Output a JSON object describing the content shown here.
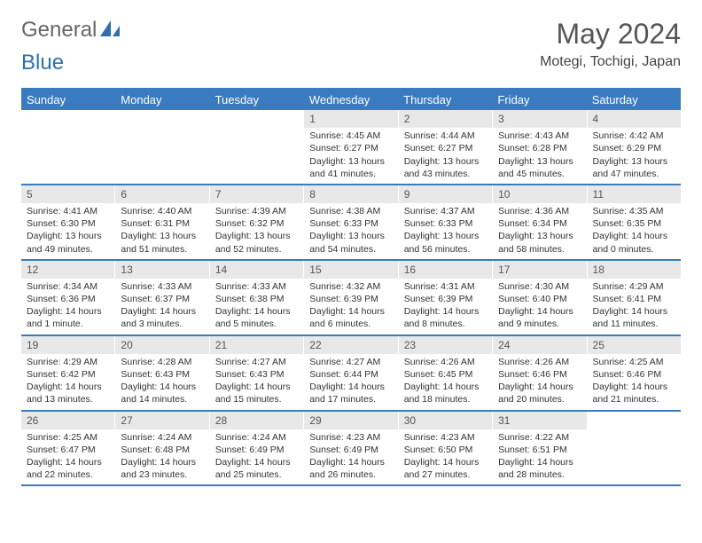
{
  "brand": {
    "text1": "General",
    "text2": "Blue"
  },
  "title": "May 2024",
  "location": "Motegi, Tochigi, Japan",
  "colors": {
    "header_bg": "#3a7bbf",
    "header_text": "#ffffff",
    "date_bg": "#e8e8e8",
    "border": "#3a7bbf",
    "page_bg": "#ffffff",
    "logo_gray": "#666666",
    "logo_blue": "#2f6fb0"
  },
  "dayNames": [
    "Sunday",
    "Monday",
    "Tuesday",
    "Wednesday",
    "Thursday",
    "Friday",
    "Saturday"
  ],
  "weeks": [
    [
      {
        "empty": true
      },
      {
        "empty": true
      },
      {
        "empty": true
      },
      {
        "date": "1",
        "sunrise": "Sunrise: 4:45 AM",
        "sunset": "Sunset: 6:27 PM",
        "daylight": "Daylight: 13 hours and 41 minutes."
      },
      {
        "date": "2",
        "sunrise": "Sunrise: 4:44 AM",
        "sunset": "Sunset: 6:27 PM",
        "daylight": "Daylight: 13 hours and 43 minutes."
      },
      {
        "date": "3",
        "sunrise": "Sunrise: 4:43 AM",
        "sunset": "Sunset: 6:28 PM",
        "daylight": "Daylight: 13 hours and 45 minutes."
      },
      {
        "date": "4",
        "sunrise": "Sunrise: 4:42 AM",
        "sunset": "Sunset: 6:29 PM",
        "daylight": "Daylight: 13 hours and 47 minutes."
      }
    ],
    [
      {
        "date": "5",
        "sunrise": "Sunrise: 4:41 AM",
        "sunset": "Sunset: 6:30 PM",
        "daylight": "Daylight: 13 hours and 49 minutes."
      },
      {
        "date": "6",
        "sunrise": "Sunrise: 4:40 AM",
        "sunset": "Sunset: 6:31 PM",
        "daylight": "Daylight: 13 hours and 51 minutes."
      },
      {
        "date": "7",
        "sunrise": "Sunrise: 4:39 AM",
        "sunset": "Sunset: 6:32 PM",
        "daylight": "Daylight: 13 hours and 52 minutes."
      },
      {
        "date": "8",
        "sunrise": "Sunrise: 4:38 AM",
        "sunset": "Sunset: 6:33 PM",
        "daylight": "Daylight: 13 hours and 54 minutes."
      },
      {
        "date": "9",
        "sunrise": "Sunrise: 4:37 AM",
        "sunset": "Sunset: 6:33 PM",
        "daylight": "Daylight: 13 hours and 56 minutes."
      },
      {
        "date": "10",
        "sunrise": "Sunrise: 4:36 AM",
        "sunset": "Sunset: 6:34 PM",
        "daylight": "Daylight: 13 hours and 58 minutes."
      },
      {
        "date": "11",
        "sunrise": "Sunrise: 4:35 AM",
        "sunset": "Sunset: 6:35 PM",
        "daylight": "Daylight: 14 hours and 0 minutes."
      }
    ],
    [
      {
        "date": "12",
        "sunrise": "Sunrise: 4:34 AM",
        "sunset": "Sunset: 6:36 PM",
        "daylight": "Daylight: 14 hours and 1 minute."
      },
      {
        "date": "13",
        "sunrise": "Sunrise: 4:33 AM",
        "sunset": "Sunset: 6:37 PM",
        "daylight": "Daylight: 14 hours and 3 minutes."
      },
      {
        "date": "14",
        "sunrise": "Sunrise: 4:33 AM",
        "sunset": "Sunset: 6:38 PM",
        "daylight": "Daylight: 14 hours and 5 minutes."
      },
      {
        "date": "15",
        "sunrise": "Sunrise: 4:32 AM",
        "sunset": "Sunset: 6:39 PM",
        "daylight": "Daylight: 14 hours and 6 minutes."
      },
      {
        "date": "16",
        "sunrise": "Sunrise: 4:31 AM",
        "sunset": "Sunset: 6:39 PM",
        "daylight": "Daylight: 14 hours and 8 minutes."
      },
      {
        "date": "17",
        "sunrise": "Sunrise: 4:30 AM",
        "sunset": "Sunset: 6:40 PM",
        "daylight": "Daylight: 14 hours and 9 minutes."
      },
      {
        "date": "18",
        "sunrise": "Sunrise: 4:29 AM",
        "sunset": "Sunset: 6:41 PM",
        "daylight": "Daylight: 14 hours and 11 minutes."
      }
    ],
    [
      {
        "date": "19",
        "sunrise": "Sunrise: 4:29 AM",
        "sunset": "Sunset: 6:42 PM",
        "daylight": "Daylight: 14 hours and 13 minutes."
      },
      {
        "date": "20",
        "sunrise": "Sunrise: 4:28 AM",
        "sunset": "Sunset: 6:43 PM",
        "daylight": "Daylight: 14 hours and 14 minutes."
      },
      {
        "date": "21",
        "sunrise": "Sunrise: 4:27 AM",
        "sunset": "Sunset: 6:43 PM",
        "daylight": "Daylight: 14 hours and 15 minutes."
      },
      {
        "date": "22",
        "sunrise": "Sunrise: 4:27 AM",
        "sunset": "Sunset: 6:44 PM",
        "daylight": "Daylight: 14 hours and 17 minutes."
      },
      {
        "date": "23",
        "sunrise": "Sunrise: 4:26 AM",
        "sunset": "Sunset: 6:45 PM",
        "daylight": "Daylight: 14 hours and 18 minutes."
      },
      {
        "date": "24",
        "sunrise": "Sunrise: 4:26 AM",
        "sunset": "Sunset: 6:46 PM",
        "daylight": "Daylight: 14 hours and 20 minutes."
      },
      {
        "date": "25",
        "sunrise": "Sunrise: 4:25 AM",
        "sunset": "Sunset: 6:46 PM",
        "daylight": "Daylight: 14 hours and 21 minutes."
      }
    ],
    [
      {
        "date": "26",
        "sunrise": "Sunrise: 4:25 AM",
        "sunset": "Sunset: 6:47 PM",
        "daylight": "Daylight: 14 hours and 22 minutes."
      },
      {
        "date": "27",
        "sunrise": "Sunrise: 4:24 AM",
        "sunset": "Sunset: 6:48 PM",
        "daylight": "Daylight: 14 hours and 23 minutes."
      },
      {
        "date": "28",
        "sunrise": "Sunrise: 4:24 AM",
        "sunset": "Sunset: 6:49 PM",
        "daylight": "Daylight: 14 hours and 25 minutes."
      },
      {
        "date": "29",
        "sunrise": "Sunrise: 4:23 AM",
        "sunset": "Sunset: 6:49 PM",
        "daylight": "Daylight: 14 hours and 26 minutes."
      },
      {
        "date": "30",
        "sunrise": "Sunrise: 4:23 AM",
        "sunset": "Sunset: 6:50 PM",
        "daylight": "Daylight: 14 hours and 27 minutes."
      },
      {
        "date": "31",
        "sunrise": "Sunrise: 4:22 AM",
        "sunset": "Sunset: 6:51 PM",
        "daylight": "Daylight: 14 hours and 28 minutes."
      },
      {
        "empty": true
      }
    ]
  ]
}
